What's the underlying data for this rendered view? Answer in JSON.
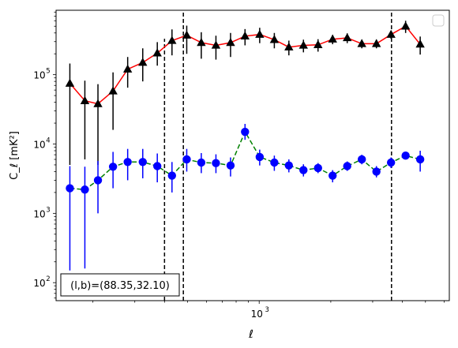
{
  "chart_data": {
    "type": "line",
    "xlabel": "ℓ",
    "ylabel": "C_ℓ [mK²]",
    "xscale": "log",
    "yscale": "log",
    "xlim": [
      140,
      6300
    ],
    "ylim": [
      55,
      850000
    ],
    "x_tick_labels": [
      {
        "value": 1000,
        "base": "10",
        "exp": "3"
      }
    ],
    "y_tick_labels": [
      {
        "value": 100,
        "base": "10",
        "exp": "2"
      },
      {
        "value": 1000,
        "base": "10",
        "exp": "3"
      },
      {
        "value": 10000,
        "base": "10",
        "exp": "4"
      },
      {
        "value": 100000,
        "base": "10",
        "exp": "5"
      }
    ],
    "annotation": "(l,b)=(88.35,32.10)",
    "vlines": [
      {
        "x": 400,
        "ymin": 55,
        "ymax": 330000
      },
      {
        "x": 480,
        "ymin": 55,
        "ymax": 850000
      },
      {
        "x": 3600,
        "ymin": 55,
        "ymax": 850000
      }
    ],
    "legend": {
      "position": "top-right",
      "entries": []
    },
    "series": [
      {
        "marker": "triangle",
        "marker_color": "#000000",
        "line_color": "#ff0000",
        "line_style": "solid",
        "x": [
          160,
          185,
          210,
          243,
          280,
          324,
          373,
          430,
          496,
          571,
          658,
          758,
          872,
          1005,
          1158,
          1333,
          1535,
          1768,
          2036,
          2345,
          2701,
          3111,
          3583,
          4127,
          4753
        ],
        "y": [
          75000,
          42000,
          38000,
          58000,
          120000,
          150000,
          205000,
          310000,
          370000,
          290000,
          265000,
          290000,
          360000,
          380000,
          320000,
          250000,
          265000,
          270000,
          325000,
          340000,
          280000,
          280000,
          380000,
          500000,
          275000
        ],
        "err_low": [
          70000,
          36000,
          33000,
          42000,
          55000,
          70000,
          70000,
          120000,
          170000,
          120000,
          100000,
          110000,
          95000,
          95000,
          80000,
          60000,
          55000,
          55000,
          50000,
          55000,
          40000,
          40000,
          50000,
          100000,
          80000
        ],
        "err_high": [
          70000,
          40000,
          35000,
          50000,
          60000,
          90000,
          90000,
          140000,
          140000,
          120000,
          100000,
          110000,
          95000,
          95000,
          80000,
          60000,
          55000,
          55000,
          50000,
          55000,
          40000,
          40000,
          50000,
          100000,
          80000
        ]
      },
      {
        "marker": "circle",
        "marker_color": "#0000ff",
        "line_color": "#008000",
        "line_style": "dashed",
        "x": [
          160,
          185,
          210,
          243,
          280,
          324,
          373,
          430,
          496,
          571,
          658,
          758,
          872,
          1005,
          1158,
          1333,
          1535,
          1768,
          2036,
          2345,
          2701,
          3111,
          3583,
          4127,
          4753
        ],
        "y": [
          2300,
          2200,
          3000,
          4700,
          5500,
          5500,
          4800,
          3500,
          6000,
          5400,
          5300,
          4900,
          15000,
          6500,
          5400,
          4900,
          4200,
          4500,
          3500,
          4800,
          6000,
          4000,
          5400,
          6800,
          6000
        ],
        "err_low": [
          2150,
          2040,
          2000,
          2400,
          2500,
          2300,
          2000,
          1500,
          2000,
          1600,
          1500,
          1500,
          3500,
          1600,
          1300,
          1000,
          800,
          700,
          700,
          700,
          900,
          700,
          900,
          800,
          2000
        ],
        "err_high": [
          2500,
          2500,
          2700,
          3000,
          3000,
          3000,
          2500,
          2000,
          2500,
          2000,
          1800,
          1500,
          4500,
          1800,
          1400,
          1100,
          900,
          800,
          700,
          800,
          1000,
          800,
          1000,
          900,
          2000
        ]
      }
    ]
  }
}
